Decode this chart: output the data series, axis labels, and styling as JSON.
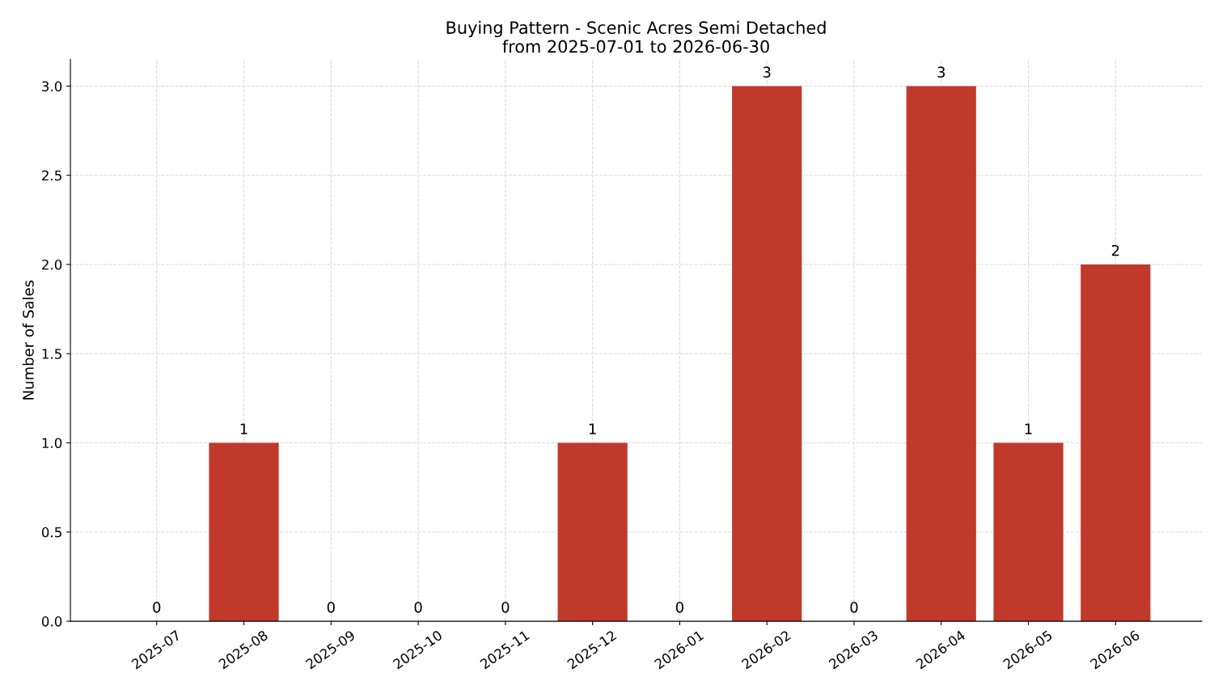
{
  "chart_data": {
    "type": "bar",
    "title": "Buying Pattern - Scenic Acres Semi Detached\nfrom 2025-07-01 to 2026-06-30",
    "ylabel": "Number of Sales",
    "categories": [
      "2025-07",
      "2025-08",
      "2025-09",
      "2025-10",
      "2025-11",
      "2025-12",
      "2026-01",
      "2026-02",
      "2026-03",
      "2026-04",
      "2026-05",
      "2026-06"
    ],
    "values": [
      0,
      1,
      0,
      0,
      0,
      1,
      0,
      3,
      0,
      3,
      1,
      2
    ],
    "color": "#c0392b",
    "ylim": [
      0,
      3.15
    ],
    "yticks": [
      {
        "value": 0,
        "label": "0.0"
      },
      {
        "value": 0.5,
        "label": "0.5"
      },
      {
        "value": 1,
        "label": "1.0"
      },
      {
        "value": 1.5,
        "label": "1.5"
      },
      {
        "value": 2,
        "label": "2.0"
      },
      {
        "value": 2.5,
        "label": "2.5"
      },
      {
        "value": 3,
        "label": "3.0"
      }
    ],
    "grid": true,
    "data_labels": true
  }
}
